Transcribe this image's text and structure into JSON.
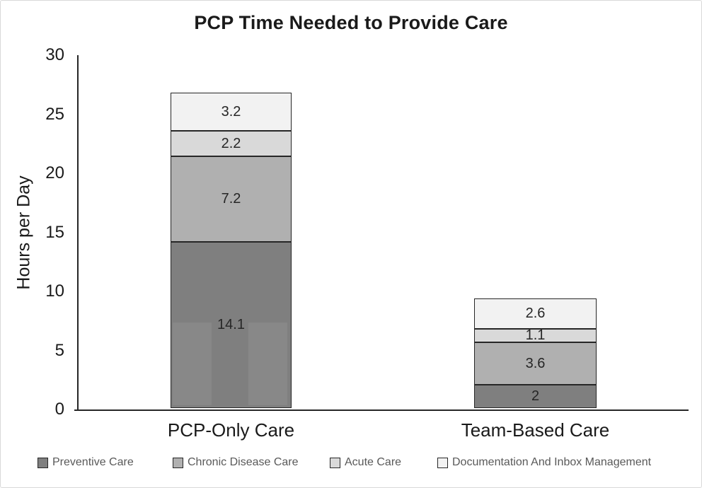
{
  "chart_data": {
    "type": "bar",
    "stacked": true,
    "title": "PCP Time Needed to Provide Care",
    "xlabel": "",
    "ylabel": "Hours per Day",
    "ylim": [
      0,
      30
    ],
    "yticks": [
      0,
      5,
      10,
      15,
      20,
      25,
      30
    ],
    "grid": false,
    "legend_position": "bottom",
    "categories": [
      "PCP-Only Care",
      "Team-Based Care"
    ],
    "series": [
      {
        "name": "Preventive Care",
        "values": [
          14.1,
          2
        ],
        "labels": [
          "14.1",
          "2"
        ],
        "color": "#7f7f7f"
      },
      {
        "name": "Chronic Disease Care",
        "values": [
          7.2,
          3.6
        ],
        "labels": [
          "7.2",
          "3.6"
        ],
        "color": "#b0b0b0"
      },
      {
        "name": "Acute Care",
        "values": [
          2.2,
          1.1
        ],
        "labels": [
          "2.2",
          "1.1"
        ],
        "color": "#d9d9d9"
      },
      {
        "name": "Documentation And Inbox Management",
        "values": [
          3.2,
          2.6
        ],
        "labels": [
          "3.2",
          "2.6"
        ],
        "color": "#f2f2f2"
      }
    ],
    "totals": [
      26.7,
      9.3
    ]
  }
}
